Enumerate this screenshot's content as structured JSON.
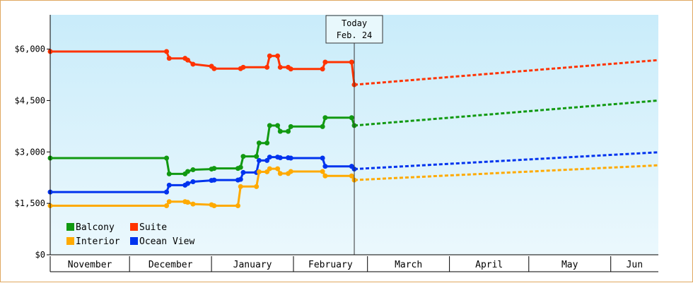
{
  "chart_data": {
    "type": "line",
    "currency_symbol": "$",
    "y_ticks": [
      0,
      1500,
      3000,
      4500,
      6000
    ],
    "y_tick_labels": [
      "$0",
      "$1,500",
      "$3,000",
      "$4,500",
      "$6,000"
    ],
    "ylim": [
      0,
      7000
    ],
    "x_domain_days": [
      0,
      230
    ],
    "months": [
      {
        "label": "November",
        "start": 0,
        "end": 30
      },
      {
        "label": "December",
        "start": 30,
        "end": 61
      },
      {
        "label": "January",
        "start": 61,
        "end": 92
      },
      {
        "label": "February",
        "start": 92,
        "end": 120
      },
      {
        "label": "March",
        "start": 120,
        "end": 151
      },
      {
        "label": "April",
        "start": 151,
        "end": 181
      },
      {
        "label": "May",
        "start": 181,
        "end": 212
      },
      {
        "label": "Jun",
        "start": 212,
        "end": 230
      }
    ],
    "today": {
      "line1": "Today",
      "line2": "Feb. 24",
      "day": 115
    },
    "forecast_end_day": 230,
    "series": [
      {
        "name": "Suite",
        "color": "#ff3300",
        "points": [
          [
            0,
            5930
          ],
          [
            44,
            5930
          ],
          [
            45,
            5730
          ],
          [
            51,
            5730
          ],
          [
            52,
            5680
          ],
          [
            54,
            5560
          ],
          [
            61,
            5500
          ],
          [
            62,
            5430
          ],
          [
            72,
            5430
          ],
          [
            73,
            5470
          ],
          [
            82,
            5470
          ],
          [
            83,
            5800
          ],
          [
            86,
            5800
          ],
          [
            87,
            5470
          ],
          [
            90,
            5470
          ],
          [
            91,
            5420
          ],
          [
            103,
            5420
          ],
          [
            104,
            5620
          ],
          [
            114,
            5620
          ],
          [
            115,
            4960
          ]
        ],
        "forecast_end": 5680
      },
      {
        "name": "Balcony",
        "color": "#119911",
        "points": [
          [
            0,
            2820
          ],
          [
            44,
            2820
          ],
          [
            45,
            2360
          ],
          [
            51,
            2360
          ],
          [
            52,
            2430
          ],
          [
            54,
            2480
          ],
          [
            61,
            2500
          ],
          [
            62,
            2520
          ],
          [
            71,
            2520
          ],
          [
            72,
            2550
          ],
          [
            73,
            2870
          ],
          [
            78,
            2870
          ],
          [
            79,
            3260
          ],
          [
            82,
            3260
          ],
          [
            83,
            3770
          ],
          [
            86,
            3770
          ],
          [
            87,
            3600
          ],
          [
            90,
            3600
          ],
          [
            91,
            3740
          ],
          [
            103,
            3740
          ],
          [
            104,
            4000
          ],
          [
            114,
            4000
          ],
          [
            115,
            3770
          ]
        ],
        "forecast_end": 4500
      },
      {
        "name": "Ocean View",
        "color": "#0033ee",
        "points": [
          [
            0,
            1830
          ],
          [
            44,
            1830
          ],
          [
            45,
            2030
          ],
          [
            51,
            2030
          ],
          [
            52,
            2080
          ],
          [
            54,
            2130
          ],
          [
            61,
            2170
          ],
          [
            62,
            2180
          ],
          [
            71,
            2180
          ],
          [
            72,
            2200
          ],
          [
            73,
            2400
          ],
          [
            78,
            2400
          ],
          [
            79,
            2750
          ],
          [
            82,
            2750
          ],
          [
            83,
            2850
          ],
          [
            86,
            2850
          ],
          [
            87,
            2830
          ],
          [
            90,
            2830
          ],
          [
            91,
            2820
          ],
          [
            103,
            2820
          ],
          [
            104,
            2580
          ],
          [
            114,
            2580
          ],
          [
            115,
            2500
          ]
        ],
        "forecast_end": 2990
      },
      {
        "name": "Interior",
        "color": "#ffaa00",
        "points": [
          [
            0,
            1430
          ],
          [
            44,
            1430
          ],
          [
            45,
            1550
          ],
          [
            51,
            1550
          ],
          [
            52,
            1530
          ],
          [
            54,
            1480
          ],
          [
            61,
            1460
          ],
          [
            62,
            1430
          ],
          [
            71,
            1430
          ],
          [
            72,
            1990
          ],
          [
            78,
            1990
          ],
          [
            79,
            2420
          ],
          [
            82,
            2420
          ],
          [
            83,
            2510
          ],
          [
            86,
            2510
          ],
          [
            87,
            2370
          ],
          [
            90,
            2370
          ],
          [
            91,
            2430
          ],
          [
            103,
            2430
          ],
          [
            104,
            2300
          ],
          [
            114,
            2300
          ],
          [
            115,
            2180
          ]
        ],
        "forecast_end": 2610
      }
    ],
    "legend": [
      "Balcony",
      "Suite",
      "Interior",
      "Ocean View"
    ],
    "legend_position": "bottom-left"
  }
}
